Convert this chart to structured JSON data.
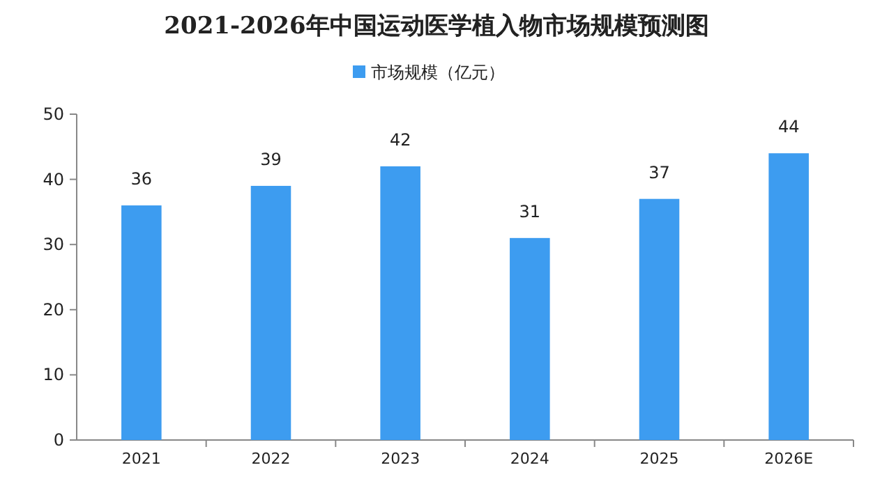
{
  "chart_data": {
    "type": "bar",
    "title": "2021-2026年中国运动医学植入物市场规模预测图",
    "categories": [
      "2021",
      "2022",
      "2023",
      "2024",
      "2025",
      "2026E"
    ],
    "series": [
      {
        "name": "市场规模（亿元）",
        "color": "#3d9cf0",
        "values": [
          36,
          39,
          42,
          31,
          37,
          44
        ]
      }
    ],
    "ylim": [
      0,
      50
    ],
    "yticks": [
      0,
      10,
      20,
      30,
      40,
      50
    ],
    "data_labels": true,
    "legend": "top"
  }
}
